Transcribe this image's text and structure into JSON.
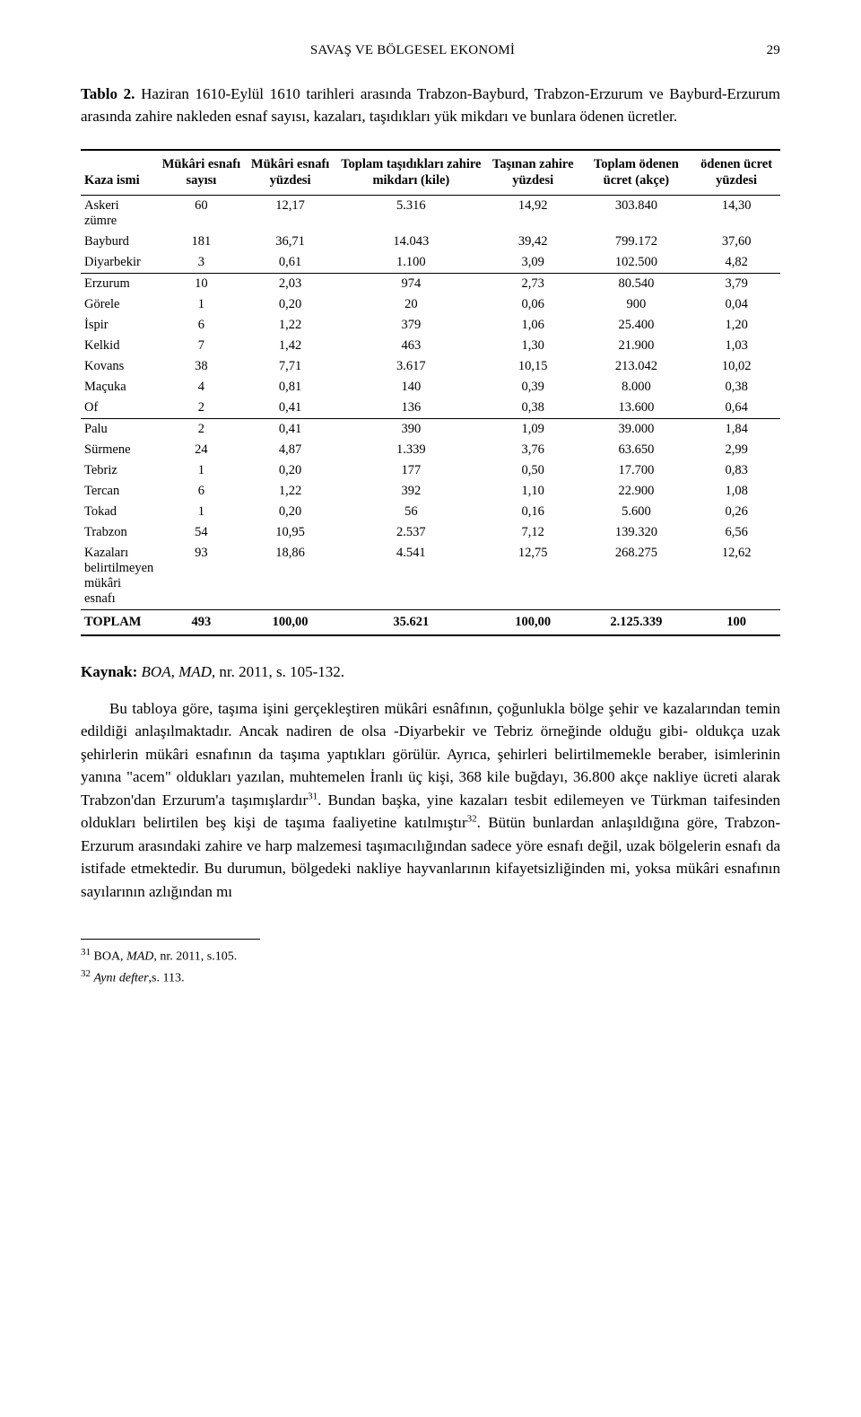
{
  "header": {
    "running_title": "SAVAŞ VE BÖLGESEL EKONOMİ",
    "page_number": "29"
  },
  "caption": {
    "label": "Tablo 2.",
    "text": " Haziran 1610-Eylül 1610 tarihleri arasında Trabzon-Bayburd, Trabzon-Erzurum ve Bayburd-Erzurum arasında zahire nakleden esnaf sayısı, kazaları, taşıdıkları yük mikdarı ve bunlara ödenen ücretler."
  },
  "table": {
    "columns": [
      "Kaza ismi",
      "Mükâri esnafı sayısı",
      "Mükâri esnafı yüzdesi",
      "Toplam taşıdıkları zahire mikdarı (kile)",
      "Taşınan zahire yüzdesi",
      "Toplam ödenen ücret (akçe)",
      "ödenen ücret yüzdesi"
    ],
    "col_align": [
      "left",
      "ctr",
      "ctr",
      "ctr",
      "ctr",
      "ctr",
      "ctr"
    ],
    "row_groups": [
      [
        {
          "cells": [
            "Askeri zümre",
            "60",
            "12,17",
            "5.316",
            "14,92",
            "303.840",
            "14,30"
          ]
        },
        {
          "cells": [
            "Bayburd",
            "181",
            "36,71",
            "14.043",
            "39,42",
            "799.172",
            "37,60"
          ]
        },
        {
          "cells": [
            "Diyarbekir",
            "3",
            "0,61",
            "1.100",
            "3,09",
            "102.500",
            "4,82"
          ]
        }
      ],
      [
        {
          "cells": [
            "Erzurum",
            "10",
            "2,03",
            "974",
            "2,73",
            "80.540",
            "3,79"
          ]
        },
        {
          "cells": [
            "Görele",
            "1",
            "0,20",
            "20",
            "0,06",
            "900",
            "0,04"
          ]
        },
        {
          "cells": [
            "İspir",
            "6",
            "1,22",
            "379",
            "1,06",
            "25.400",
            "1,20"
          ]
        },
        {
          "cells": [
            "Kelkid",
            "7",
            "1,42",
            "463",
            "1,30",
            "21.900",
            "1,03"
          ]
        },
        {
          "cells": [
            "Kovans",
            "38",
            "7,71",
            "3.617",
            "10,15",
            "213.042",
            "10,02"
          ]
        },
        {
          "cells": [
            "Maçuka",
            "4",
            "0,81",
            "140",
            "0,39",
            "8.000",
            "0,38"
          ]
        },
        {
          "cells": [
            "Of",
            "2",
            "0,41",
            "136",
            "0,38",
            "13.600",
            "0,64"
          ]
        }
      ],
      [
        {
          "cells": [
            "Palu",
            "2",
            "0,41",
            "390",
            "1,09",
            "39.000",
            "1,84"
          ]
        },
        {
          "cells": [
            "Sürmene",
            "24",
            "4,87",
            "1.339",
            "3,76",
            "63.650",
            "2,99"
          ]
        },
        {
          "cells": [
            "Tebriz",
            "1",
            "0,20",
            "177",
            "0,50",
            "17.700",
            "0,83"
          ]
        },
        {
          "cells": [
            "Tercan",
            "6",
            "1,22",
            "392",
            "1,10",
            "22.900",
            "1,08"
          ]
        },
        {
          "cells": [
            "Tokad",
            "1",
            "0,20",
            "56",
            "0,16",
            "5.600",
            "0,26"
          ]
        },
        {
          "cells": [
            "Trabzon",
            "54",
            "10,95",
            "2.537",
            "7,12",
            "139.320",
            "6,56"
          ]
        },
        {
          "cells": [
            "Kazaları\nbelirtilmeyen\nmükâri esnafı",
            "93",
            "18,86",
            "4.541",
            "12,75",
            "268.275",
            "12,62"
          ]
        }
      ]
    ],
    "total_row": {
      "cells": [
        "TOPLAM",
        "493",
        "100,00",
        "35.621",
        "100,00",
        "2.125.339",
        "100"
      ]
    }
  },
  "source": {
    "label": "Kaynak:",
    "cite": " BOA, MAD, ",
    "rest": "nr. 2011, s. 105-132."
  },
  "paragraph": {
    "text_pre": "Bu tabloya göre, taşıma işini gerçekleştiren mükâri esnâfının, çoğunlukla bölge şehir ve kazalarından temin edildiği anlaşılmaktadır. Ancak nadiren de olsa -Diyarbekir ve Tebriz örneğinde olduğu gibi- oldukça uzak şehirlerin mükâri esnafının da taşıma yaptıkları görülür. Ayrıca, şehirleri belirtilmemekle beraber, isimlerinin yanına \"acem\" oldukları yazılan, muhtemelen İranlı üç kişi, 368 kile buğdayı, 36.800 akçe nakliye ücreti alarak Trabzon'dan Erzurum'a taşımışlardır",
    "fn1": "31",
    "text_mid": ". Bundan başka, yine kazaları tesbit edilemeyen ve Türkman taifesinden oldukları belirtilen beş kişi de taşıma faaliyetine katılmıştır",
    "fn2": "32",
    "text_post": ". Bütün bunlardan anlaşıldığına göre, Trabzon-Erzurum arasındaki zahire ve harp malzemesi taşımacılığından sadece yöre esnafı değil, uzak bölgelerin esnafı da istifade etmektedir. Bu durumun, bölgedeki nakliye hayvanlarının kifayetsizliğinden mi, yoksa mükâri esnafının sayılarının azlığından mı"
  },
  "footnotes": {
    "fn31_num": "31",
    "fn31_text_a": " BOA, ",
    "fn31_text_b": "MAD",
    "fn31_text_c": ", nr. 2011, s.105.",
    "fn32_num": "32",
    "fn32_text_a": " ",
    "fn32_text_b": "Aynı defter",
    "fn32_text_c": ",s. 113."
  },
  "style": {
    "background": "#ffffff",
    "text_color": "#000000",
    "body_font_size": 17,
    "table_font_size": 14.5,
    "running_font_size": 15,
    "rule_color": "#000000"
  }
}
